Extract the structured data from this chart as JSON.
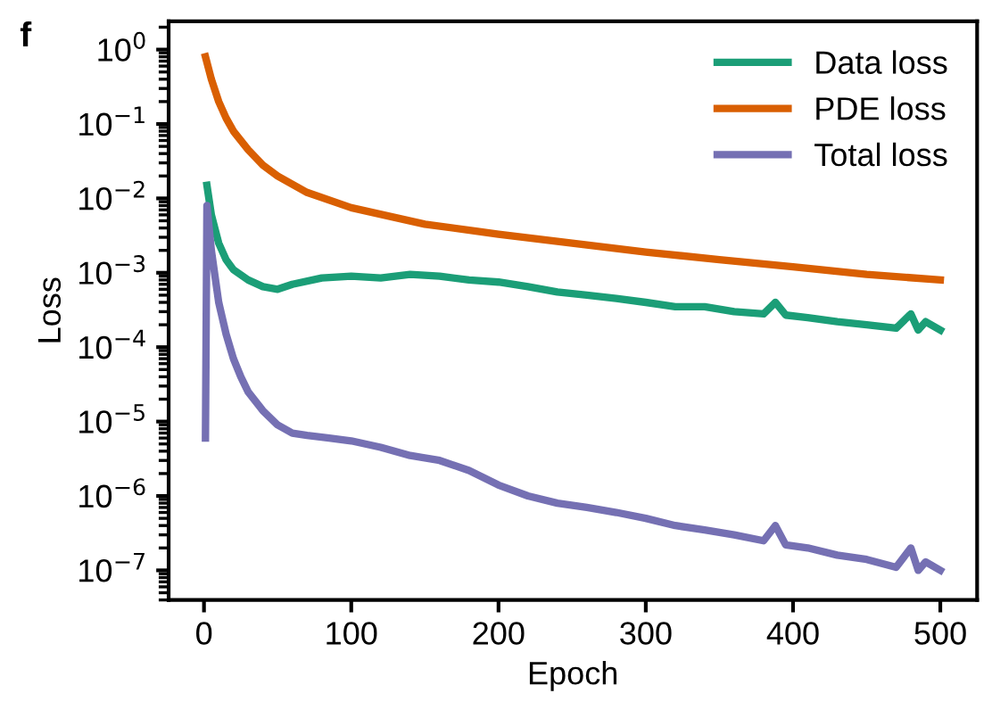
{
  "chart_data": {
    "type": "line",
    "xlabel": "Epoch",
    "ylabel": "Loss",
    "annotations": [
      "f"
    ],
    "log": "y",
    "legend": "top right",
    "grid": false,
    "line_style": "solid",
    "marker": "none",
    "xlim": [
      -24,
      525
    ],
    "xticks": [
      0,
      100,
      200,
      300,
      400,
      500
    ],
    "ylim": [
      4e-08,
      2.4
    ],
    "yticks": [
      {
        "value": 1e-07,
        "label": "10$^{−7}$"
      },
      {
        "value": 1e-06,
        "label": "10$^{−6}$"
      },
      {
        "value": 1e-05,
        "label": "10$^{−5}$"
      },
      {
        "value": 0.0001,
        "label": "10$^{−4}$"
      },
      {
        "value": 0.001,
        "label": "10$^{−3}$"
      },
      {
        "value": 0.01,
        "label": "10$^{−2}$"
      },
      {
        "value": 0.1,
        "label": "10$^{−1}$"
      },
      {
        "value": 1,
        "label": "10$^{0}$"
      }
    ],
    "series": [
      {
        "name": "Data loss",
        "color": "#1b9e77",
        "x": [
          2,
          5,
          10,
          15,
          20,
          30,
          40,
          50,
          60,
          80,
          100,
          120,
          140,
          160,
          180,
          200,
          220,
          240,
          260,
          280,
          300,
          320,
          340,
          360,
          380,
          388,
          395,
          410,
          430,
          450,
          470,
          480,
          485,
          490,
          500
        ],
        "values": [
          0.015,
          0.006,
          0.0025,
          0.0015,
          0.0011,
          0.0008,
          0.00065,
          0.0006,
          0.0007,
          0.00085,
          0.0009,
          0.00085,
          0.00095,
          0.0009,
          0.0008,
          0.00075,
          0.00065,
          0.00055,
          0.0005,
          0.00045,
          0.0004,
          0.00035,
          0.00035,
          0.0003,
          0.00028,
          0.0004,
          0.00027,
          0.00025,
          0.00022,
          0.0002,
          0.00018,
          0.00028,
          0.00017,
          0.00022,
          0.00017
        ]
      },
      {
        "name": "PDE loss",
        "color": "#d95f02",
        "x": [
          1,
          5,
          10,
          15,
          20,
          30,
          40,
          50,
          70,
          100,
          150,
          200,
          250,
          300,
          350,
          400,
          450,
          500
        ],
        "values": [
          0.8,
          0.4,
          0.2,
          0.12,
          0.08,
          0.045,
          0.028,
          0.02,
          0.012,
          0.0075,
          0.0045,
          0.0033,
          0.0025,
          0.0019,
          0.0015,
          0.0012,
          0.00095,
          0.0008
        ]
      },
      {
        "name": "Total loss",
        "color": "#7570b3",
        "x": [
          1,
          2,
          5,
          10,
          15,
          20,
          25,
          30,
          40,
          50,
          60,
          70,
          85,
          100,
          120,
          140,
          160,
          180,
          200,
          220,
          240,
          260,
          280,
          300,
          320,
          340,
          360,
          380,
          388,
          395,
          410,
          430,
          450,
          470,
          480,
          485,
          490,
          500
        ],
        "values": [
          6e-06,
          0.008,
          0.002,
          0.0004,
          0.00015,
          7e-05,
          4e-05,
          2.5e-05,
          1.4e-05,
          9e-06,
          7e-06,
          6.5e-06,
          6e-06,
          5.5e-06,
          4.5e-06,
          3.5e-06,
          3e-06,
          2.2e-06,
          1.4e-06,
          1e-06,
          8e-07,
          7e-07,
          6e-07,
          5e-07,
          4e-07,
          3.5e-07,
          3e-07,
          2.5e-07,
          4e-07,
          2.2e-07,
          2e-07,
          1.6e-07,
          1.4e-07,
          1.1e-07,
          2e-07,
          1e-07,
          1.3e-07,
          1e-07
        ]
      }
    ]
  }
}
